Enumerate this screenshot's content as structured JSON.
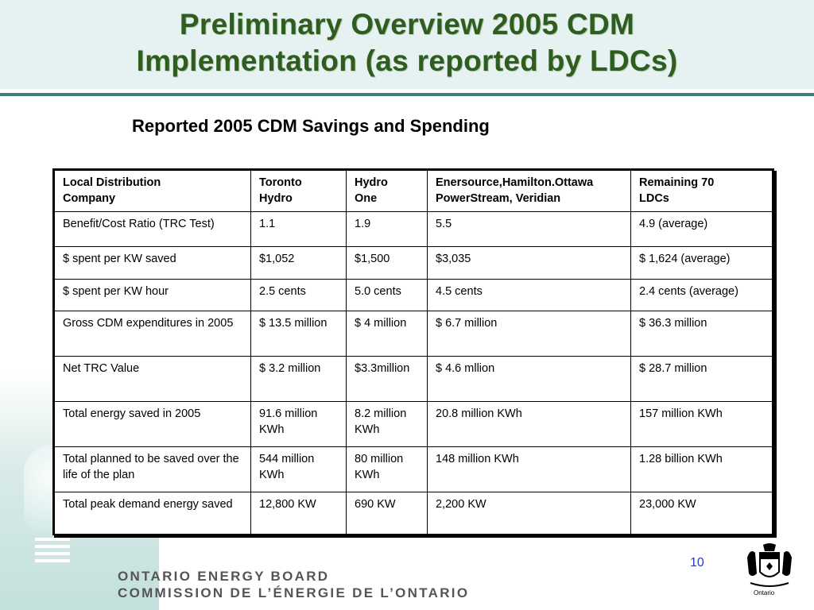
{
  "title": {
    "line1": "Preliminary Overview 2005 CDM",
    "line2": "Implementation (as reported by LDCs)"
  },
  "subtitle": "Reported 2005 CDM Savings and Spending",
  "table": {
    "headers": [
      [
        "Local Distribution",
        "Company"
      ],
      [
        "Toronto",
        "Hydro"
      ],
      [
        "Hydro",
        "One"
      ],
      [
        "Enersource,Hamilton.Ottawa",
        "PowerStream, Veridian"
      ],
      [
        "Remaining 70",
        "LDCs"
      ]
    ],
    "rows": [
      [
        "Benefit/Cost Ratio (TRC Test)",
        "1.1",
        "1.9",
        "5.5",
        "4.9  (average)"
      ],
      [
        "$ spent per KW saved",
        "$1,052",
        "$1,500",
        "$3,035",
        "$ 1,624  (average)"
      ],
      [
        "$ spent per KW hour",
        "2.5 cents",
        "5.0 cents",
        "4.5 cents",
        "2.4 cents  (average)"
      ],
      [
        "Gross CDM expenditures in 2005",
        "$ 13.5 million",
        "$ 4 million",
        "$ 6.7 million",
        "$ 36.3 million"
      ],
      [
        "Net TRC Value",
        "$ 3.2 million",
        "$3.3million",
        "$ 4.6 mllion",
        "$ 28.7 million"
      ],
      [
        "Total energy saved in 2005",
        "91.6  million KWh",
        "8.2 million KWh",
        "20.8 million KWh",
        "157 million KWh"
      ],
      [
        "Total planned to be saved over the life of the plan",
        "544 million KWh",
        "80 million KWh",
        "148 million KWh",
        "1.28 billion KWh"
      ],
      [
        "Total peak demand energy saved",
        "12,800 KW",
        "690 KW",
        "2,200 KW",
        "23,000 KW"
      ]
    ]
  },
  "page_number": "10",
  "footer": {
    "line1": "ONTARIO ENERGY BOARD",
    "line2": "COMMISSION DE L’ÉNERGIE DE L’ONTARIO",
    "crest_label": "Ontario"
  },
  "colors": {
    "title": "#2e5d1f",
    "rule": "#3e7c80",
    "page_number": "#1f3fbf"
  }
}
